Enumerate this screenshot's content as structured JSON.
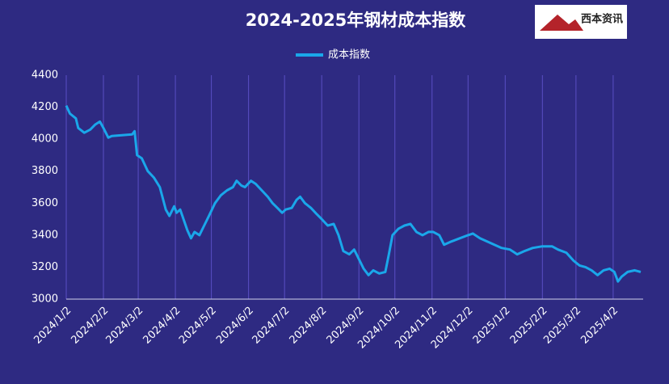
{
  "chart_data": {
    "type": "line",
    "title": "2024-2025年钢材成本指数",
    "logo": "西本资讯",
    "x": [
      "2024/1/2",
      "2024/1/5",
      "2024/1/10",
      "2024/1/12",
      "2024/1/17",
      "2024/1/22",
      "2024/1/26",
      "2024/1/30",
      "2024/2/2",
      "2024/2/6",
      "2024/2/9",
      "2024/2/26",
      "2024/2/28",
      "2024/3/1",
      "2024/3/5",
      "2024/3/10",
      "2024/3/15",
      "2024/3/20",
      "2024/3/25",
      "2024/3/28",
      "2024/4/1",
      "2024/4/3",
      "2024/4/6",
      "2024/4/12",
      "2024/4/15",
      "2024/4/18",
      "2024/4/22",
      "2024/4/26",
      "2024/4/30",
      "2024/5/5",
      "2024/5/10",
      "2024/5/15",
      "2024/5/20",
      "2024/5/23",
      "2024/5/27",
      "2024/5/30",
      "2024/6/4",
      "2024/6/8",
      "2024/6/13",
      "2024/6/18",
      "2024/6/22",
      "2024/6/26",
      "2024/6/30",
      "2024/7/3",
      "2024/7/8",
      "2024/7/12",
      "2024/7/15",
      "2024/7/19",
      "2024/7/24",
      "2024/7/29",
      "2024/8/2",
      "2024/8/7",
      "2024/8/12",
      "2024/8/16",
      "2024/8/20",
      "2024/8/25",
      "2024/8/29",
      "2024/9/2",
      "2024/9/6",
      "2024/9/10",
      "2024/9/14",
      "2024/9/19",
      "2024/9/24",
      "2024/9/27",
      "2024/9/30",
      "2024/10/5",
      "2024/10/10",
      "2024/10/15",
      "2024/10/20",
      "2024/10/25",
      "2024/10/30",
      "2024/11/3",
      "2024/11/8",
      "2024/11/12",
      "2024/11/18",
      "2024/11/25",
      "2024/12/2",
      "2024/12/6",
      "2024/12/12",
      "2024/12/18",
      "2024/12/24",
      "2024/12/30",
      "2025/1/6",
      "2025/1/12",
      "2025/1/18",
      "2025/1/25",
      "2025/2/2",
      "2025/2/10",
      "2025/2/15",
      "2025/2/22",
      "2025/2/28",
      "2025/3/5",
      "2025/3/10",
      "2025/3/15",
      "2025/3/20",
      "2025/3/25",
      "2025/3/30",
      "2025/4/3",
      "2025/4/6",
      "2025/4/9",
      "2025/4/14",
      "2025/4/20",
      "2025/4/25"
    ],
    "series": [
      {
        "name": "成本指数",
        "color": "#1aa7ea",
        "values": [
          4210,
          4160,
          4130,
          4070,
          4040,
          4060,
          4090,
          4110,
          4070,
          4010,
          4020,
          4030,
          4050,
          3900,
          3880,
          3800,
          3760,
          3700,
          3560,
          3520,
          3580,
          3540,
          3560,
          3430,
          3380,
          3420,
          3400,
          3460,
          3520,
          3600,
          3650,
          3680,
          3700,
          3740,
          3710,
          3700,
          3740,
          3720,
          3680,
          3640,
          3600,
          3570,
          3540,
          3560,
          3570,
          3620,
          3640,
          3600,
          3570,
          3530,
          3500,
          3460,
          3470,
          3400,
          3300,
          3280,
          3310,
          3250,
          3190,
          3150,
          3180,
          3160,
          3170,
          3280,
          3400,
          3440,
          3460,
          3470,
          3420,
          3400,
          3420,
          3420,
          3400,
          3340,
          3360,
          3380,
          3400,
          3410,
          3380,
          3360,
          3340,
          3320,
          3310,
          3280,
          3300,
          3320,
          3330,
          3330,
          3310,
          3290,
          3240,
          3210,
          3200,
          3180,
          3150,
          3180,
          3190,
          3170,
          3110,
          3140,
          3170,
          3180,
          3170
        ]
      }
    ],
    "xlim": [
      "2024/1/2",
      "2025/4/27"
    ],
    "xticks": [
      "2024/1/2",
      "2024/2/2",
      "2024/3/2",
      "2024/4/2",
      "2024/5/2",
      "2024/6/2",
      "2024/7/2",
      "2024/8/2",
      "2024/9/2",
      "2024/10/2",
      "2024/11/2",
      "2024/12/2",
      "2025/1/2",
      "2025/2/2",
      "2025/3/2",
      "2025/4/2"
    ],
    "ylim": [
      3000,
      4400
    ],
    "yticks": [
      3000,
      3200,
      3400,
      3600,
      3800,
      4000,
      4200,
      4400
    ],
    "xgrid": true
  }
}
